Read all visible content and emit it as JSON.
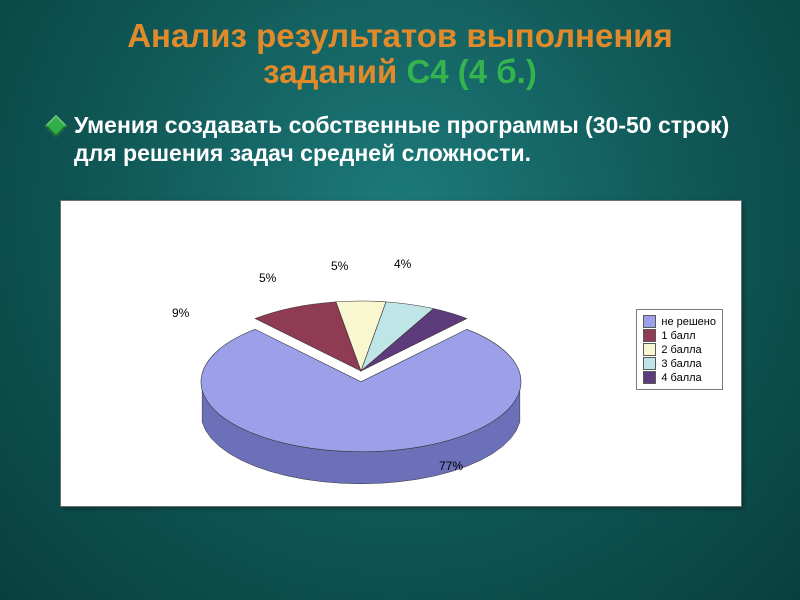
{
  "slide": {
    "background_center": "#1d7a7a",
    "background_edge": "#083f3e"
  },
  "title": {
    "line1": "Анализ результатов выполнения",
    "line2_a": "заданий ",
    "line2_b": "С4 (4 б.)",
    "color_primary": "#e08a2c",
    "color_secondary": "#34b34f",
    "font_size_pt": 25,
    "font_weight": "bold"
  },
  "bullet": {
    "text": "Умения создавать собственные программы (30-50 строк) для решения задач средней сложности.",
    "text_color": "#ffffff",
    "icon_color": "#2fae49",
    "font_size_pt": 17,
    "font_weight": "bold"
  },
  "chart": {
    "type": "pie",
    "style": "3d-exploded",
    "background_color": "#ffffff",
    "border_color": "#6f6f6f",
    "exploded_slice_index": 0,
    "label_font_size": 12,
    "label_color": "#000000",
    "slices": [
      {
        "label": "не решено",
        "value": 77,
        "display": "77%",
        "fill": "#9ba0e8",
        "side_fill": "#6b70b8"
      },
      {
        "label": "1 балл",
        "value": 9,
        "display": "9%",
        "fill": "#8e3b53",
        "side_fill": "#5e2636"
      },
      {
        "label": "2 балла",
        "value": 5,
        "display": "5%",
        "fill": "#f9f7cf",
        "side_fill": "#cfcc9a"
      },
      {
        "label": "3 балла",
        "value": 5,
        "display": "5%",
        "fill": "#bfe5e7",
        "side_fill": "#8fbfc1"
      },
      {
        "label": "4 балла",
        "value": 4,
        "display": "4%",
        "fill": "#5e3b7a",
        "side_fill": "#3d2550"
      }
    ],
    "legend": {
      "border_color": "#7a7a7a",
      "font_size": 11,
      "swatch_border": "#5a5a5a"
    }
  }
}
